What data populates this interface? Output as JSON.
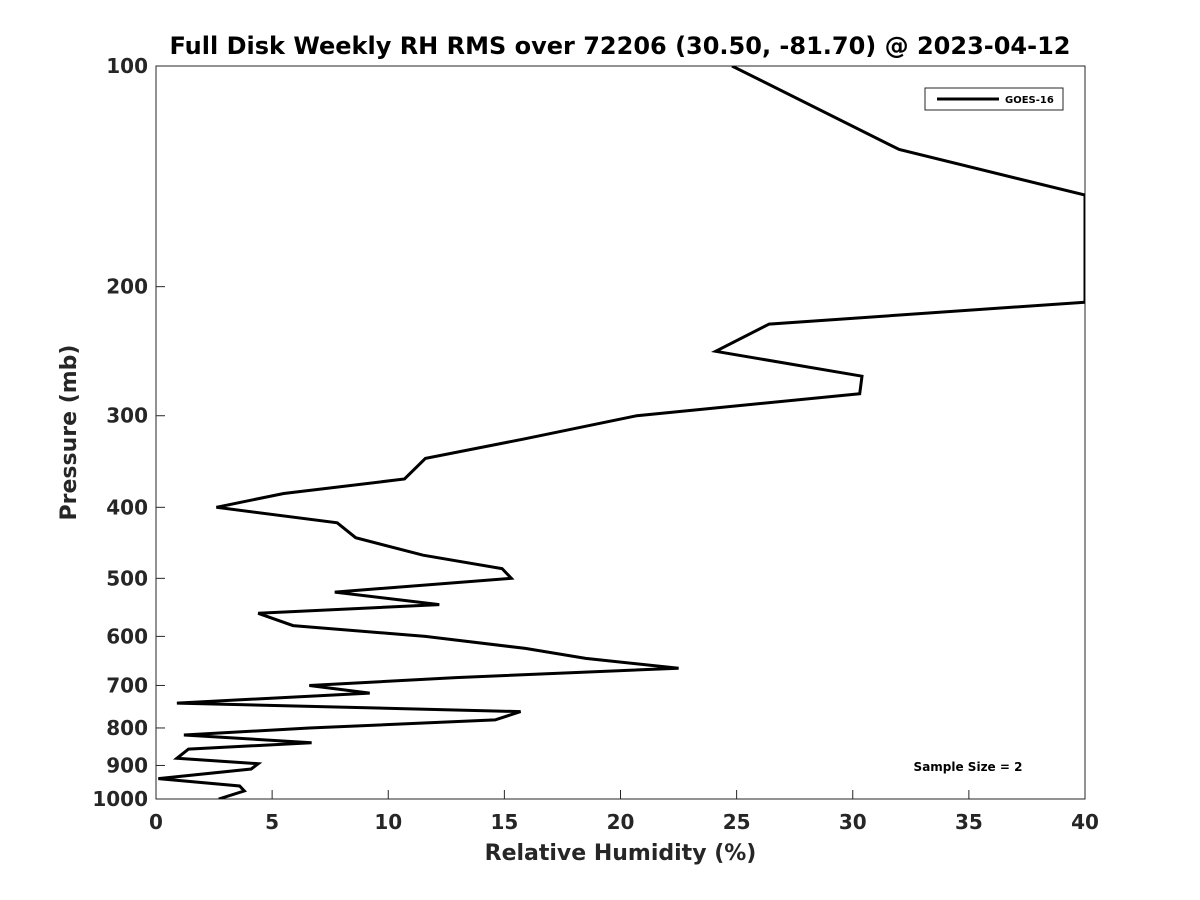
{
  "chart_data": {
    "type": "line",
    "title": "Full Disk Weekly RH RMS over 72206 (30.50, -81.70) @ 2023-04-12",
    "xlabel": "Relative Humidity (%)",
    "ylabel": "Pressure (mb)",
    "xlim": [
      0,
      40
    ],
    "ylim": [
      100,
      1000
    ],
    "yscale": "log",
    "reversed_y": true,
    "grid": false,
    "x_ticks": [
      0,
      5,
      10,
      15,
      20,
      25,
      30,
      35,
      40
    ],
    "y_ticks": [
      100,
      200,
      300,
      400,
      500,
      600,
      700,
      800,
      900,
      1000
    ],
    "legend": {
      "position": "top-right",
      "entries": [
        "GOES-16"
      ]
    },
    "annotation": "Sample Size = 2",
    "series": [
      {
        "name": "GOES-16",
        "color": "#000000",
        "x": [
          24.8,
          32.0,
          40.0,
          40.0,
          26.4,
          24.1,
          30.4,
          30.3,
          20.7,
          15.8,
          11.6,
          10.7,
          5.5,
          2.6,
          7.8,
          8.6,
          11.5,
          14.9,
          15.3,
          7.7,
          12.2,
          4.4,
          5.9,
          11.6,
          15.9,
          18.5,
          22.5,
          12.9,
          6.6,
          9.2,
          0.9,
          15.7,
          14.6,
          6.6,
          1.2,
          6.7,
          1.4,
          0.9,
          4.4,
          4.1,
          0.1,
          3.6,
          3.8,
          2.7
        ],
        "y": [
          100,
          130,
          150,
          210,
          225,
          245,
          265,
          280,
          300,
          323,
          343,
          366,
          383,
          400,
          420,
          440,
          465,
          485,
          500,
          522,
          543,
          558,
          580,
          600,
          623,
          643,
          663,
          683,
          700,
          717,
          740,
          760,
          780,
          800,
          818,
          838,
          855,
          880,
          895,
          910,
          938,
          960,
          975,
          1000
        ]
      }
    ]
  }
}
